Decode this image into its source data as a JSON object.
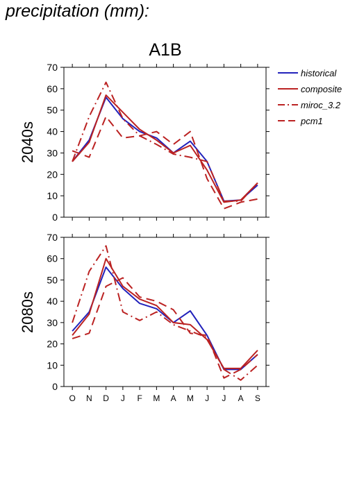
{
  "page": {
    "title": "precipitation (mm):"
  },
  "chart_data": [
    {
      "type": "line",
      "title": "A1B",
      "ylabel": "2040s",
      "xlabel": "",
      "categories": [
        "O",
        "N",
        "D",
        "J",
        "F",
        "M",
        "A",
        "M",
        "J",
        "J",
        "A",
        "S"
      ],
      "ylim": [
        0,
        70
      ],
      "yticks": [
        0,
        10,
        20,
        30,
        40,
        50,
        60,
        70
      ],
      "grid": false,
      "legend_placement": "right",
      "series": [
        {
          "name": "historical",
          "color": "#2222bb",
          "dash": "solid",
          "values": [
            26,
            36,
            56,
            46,
            40,
            37,
            30,
            35.5,
            26,
            7.5,
            8,
            15
          ]
        },
        {
          "name": "composite",
          "color": "#bb2222",
          "dash": "solid",
          "values": [
            26,
            35,
            57,
            49,
            41,
            36,
            30,
            33.5,
            22,
            7,
            8,
            16
          ]
        },
        {
          "name": "miroc_3.2",
          "color": "#bb2222",
          "dash": "dashdot",
          "values": [
            26,
            47,
            63,
            46,
            38,
            34,
            29.5,
            28,
            26,
            7.5,
            7.5,
            16
          ]
        },
        {
          "name": "pcm1",
          "color": "#bb2222",
          "dash": "dash",
          "values": [
            31,
            28,
            47,
            37,
            38,
            40,
            34,
            40,
            18,
            4,
            7,
            8.5
          ]
        }
      ]
    },
    {
      "type": "line",
      "title": "",
      "ylabel": "2080s",
      "xlabel": "",
      "categories": [
        "O",
        "N",
        "D",
        "J",
        "F",
        "M",
        "A",
        "M",
        "J",
        "J",
        "A",
        "S"
      ],
      "ylim": [
        0,
        70
      ],
      "yticks": [
        0,
        10,
        20,
        30,
        40,
        50,
        60,
        70
      ],
      "grid": false,
      "series": [
        {
          "name": "historical",
          "color": "#2222bb",
          "dash": "solid",
          "values": [
            26,
            35,
            56,
            46,
            39,
            36.5,
            30,
            35.5,
            24,
            8,
            8,
            15
          ]
        },
        {
          "name": "composite",
          "color": "#bb2222",
          "dash": "solid",
          "values": [
            24,
            34,
            60,
            47,
            41,
            38,
            30,
            29,
            22,
            8.5,
            8.5,
            17
          ]
        },
        {
          "name": "miroc_3.2",
          "color": "#bb2222",
          "dash": "dashdot",
          "values": [
            30,
            54,
            66,
            35,
            31,
            35,
            29,
            26,
            23,
            8,
            3,
            10
          ]
        },
        {
          "name": "pcm1",
          "color": "#bb2222",
          "dash": "dash",
          "values": [
            22.5,
            25,
            47,
            51,
            42,
            40,
            36,
            25,
            24,
            4,
            8,
            15
          ]
        }
      ]
    }
  ]
}
